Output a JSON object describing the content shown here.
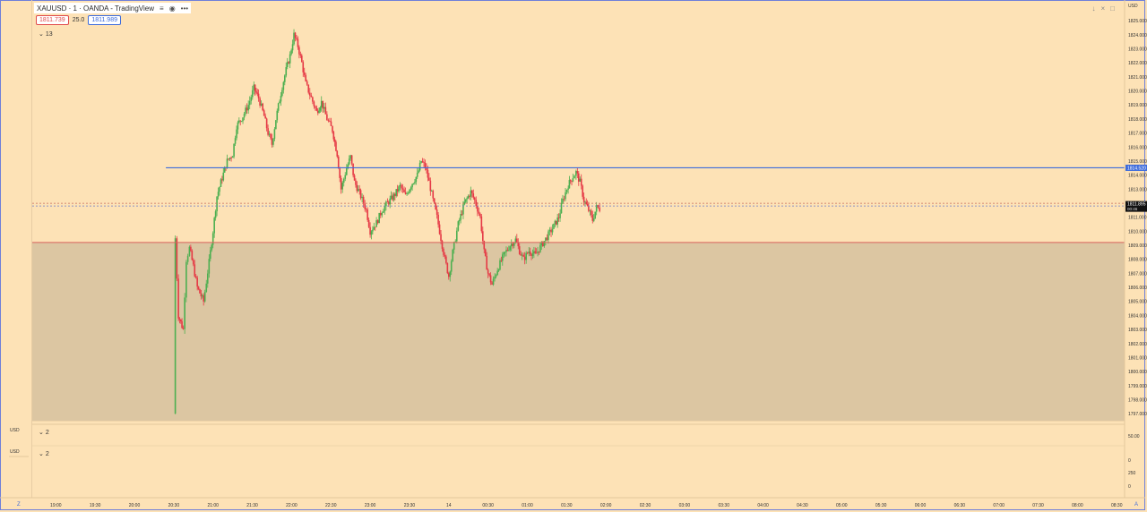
{
  "window": {
    "title": "XAUUSD · 1 · OANDA - TradingView",
    "currency": "USD",
    "corner_left": "Z",
    "corner_right": "A"
  },
  "trade_bar": {
    "sell_price": "1811.739",
    "quantity": "25.0",
    "buy_price": "1811.989"
  },
  "collapse_main": "13",
  "sub_panes": [
    {
      "label": "USD",
      "collapse": "2"
    },
    {
      "label": "USD",
      "collapse": "2"
    }
  ],
  "sub_pane_ticks": [
    "50.00",
    "0",
    "250",
    "0"
  ],
  "markers": {
    "blue_line_label": "1814.520",
    "current_price_label": "1811.895",
    "countdown": "00:46"
  },
  "colors": {
    "background": "#fde2b6",
    "up": "#4caf50",
    "down": "#e53945",
    "zone_fill": "#dcc6a2",
    "blue_line": "#3d6bdb",
    "red_line": "#d9625e"
  },
  "chart_data": {
    "type": "candlestick",
    "symbol": "XAUUSD",
    "interval": "1",
    "ylim": [
      1796.5,
      1825.2
    ],
    "y_ticks": [
      "1825.000",
      "1824.000",
      "1823.000",
      "1822.000",
      "1821.000",
      "1820.000",
      "1819.000",
      "1818.000",
      "1817.000",
      "1816.000",
      "1815.000",
      "1814.000",
      "1813.000",
      "1812.000",
      "1811.000",
      "1810.000",
      "1809.000",
      "1808.000",
      "1807.000",
      "1806.000",
      "1805.000",
      "1804.000",
      "1803.000",
      "1802.000",
      "1801.000",
      "1800.000",
      "1799.000",
      "1798.000",
      "1797.000"
    ],
    "x_ticks": [
      "19:00",
      "19:30",
      "20:00",
      "20:30",
      "21:00",
      "21:30",
      "22:00",
      "22:30",
      "23:00",
      "23:30",
      "14",
      "00:30",
      "01:00",
      "01:30",
      "02:00",
      "02:30",
      "03:00",
      "03:30",
      "04:00",
      "04:30",
      "05:00",
      "05:30",
      "06:00",
      "06:30",
      "07:00",
      "07:30",
      "08:00",
      "08:30"
    ],
    "price_path": [
      [
        20.5,
        1797
      ],
      [
        20.52,
        1809.5
      ],
      [
        20.56,
        1804
      ],
      [
        20.62,
        1803
      ],
      [
        20.66,
        1808
      ],
      [
        20.7,
        1808.8
      ],
      [
        20.75,
        1807.5
      ],
      [
        20.8,
        1806
      ],
      [
        20.88,
        1805
      ],
      [
        20.95,
        1807.8
      ],
      [
        21.0,
        1810
      ],
      [
        21.05,
        1812.5
      ],
      [
        21.1,
        1813.5
      ],
      [
        21.18,
        1815
      ],
      [
        21.25,
        1815.5
      ],
      [
        21.3,
        1817.5
      ],
      [
        21.38,
        1818.2
      ],
      [
        21.45,
        1819
      ],
      [
        21.52,
        1820.2
      ],
      [
        21.58,
        1819.5
      ],
      [
        21.65,
        1818.2
      ],
      [
        21.7,
        1817
      ],
      [
        21.75,
        1816.2
      ],
      [
        21.8,
        1818
      ],
      [
        21.88,
        1820.3
      ],
      [
        21.93,
        1821.5
      ],
      [
        21.98,
        1822.5
      ],
      [
        22.03,
        1824
      ],
      [
        22.08,
        1823.2
      ],
      [
        22.13,
        1822
      ],
      [
        22.18,
        1820.5
      ],
      [
        22.25,
        1819.5
      ],
      [
        22.32,
        1818.5
      ],
      [
        22.38,
        1819.2
      ],
      [
        22.45,
        1818
      ],
      [
        22.52,
        1817.2
      ],
      [
        22.58,
        1815.5
      ],
      [
        22.63,
        1813
      ],
      [
        22.7,
        1814.5
      ],
      [
        22.75,
        1815.3
      ],
      [
        22.8,
        1813.5
      ],
      [
        22.88,
        1812.5
      ],
      [
        22.95,
        1811.5
      ],
      [
        23.0,
        1810
      ],
      [
        23.08,
        1810.6
      ],
      [
        23.15,
        1811.5
      ],
      [
        23.22,
        1812
      ],
      [
        23.3,
        1812.5
      ],
      [
        23.38,
        1813.2
      ],
      [
        23.45,
        1812.5
      ],
      [
        23.52,
        1813.3
      ],
      [
        23.6,
        1814
      ],
      [
        23.65,
        1815
      ],
      [
        23.7,
        1814.6
      ],
      [
        23.75,
        1813.5
      ],
      [
        23.8,
        1812.2
      ],
      [
        23.85,
        1811
      ],
      [
        23.9,
        1809.5
      ],
      [
        23.95,
        1808
      ],
      [
        24.0,
        1806.8
      ],
      [
        24.05,
        1808.5
      ],
      [
        24.12,
        1810.5
      ],
      [
        24.2,
        1812
      ],
      [
        24.28,
        1812.8
      ],
      [
        24.33,
        1812.2
      ],
      [
        24.4,
        1811
      ],
      [
        24.45,
        1808.5
      ],
      [
        24.5,
        1807
      ],
      [
        24.55,
        1806.2
      ],
      [
        24.62,
        1807.3
      ],
      [
        24.7,
        1808.3
      ],
      [
        24.78,
        1809
      ],
      [
        24.85,
        1809.4
      ],
      [
        24.9,
        1808.6
      ],
      [
        24.95,
        1808
      ],
      [
        25.02,
        1808.6
      ],
      [
        25.1,
        1808.3
      ],
      [
        25.18,
        1809
      ],
      [
        25.25,
        1809.6
      ],
      [
        25.32,
        1810.2
      ],
      [
        25.4,
        1811
      ],
      [
        25.45,
        1812.2
      ],
      [
        25.52,
        1813.3
      ],
      [
        25.58,
        1813.9
      ],
      [
        25.62,
        1814.2
      ],
      [
        25.67,
        1813.5
      ],
      [
        25.72,
        1812.2
      ],
      [
        25.78,
        1811.5
      ],
      [
        25.83,
        1810.8
      ],
      [
        25.88,
        1811.7
      ],
      [
        25.92,
        1811.6
      ]
    ],
    "horizontal_lines": [
      {
        "price": 1814.52,
        "color": "blue",
        "from_time": 20.4
      },
      {
        "price": 1809.2,
        "color": "red",
        "from_time": 18.7
      },
      {
        "price": 1811.895,
        "color": "dotted",
        "from_time": 18.7
      }
    ],
    "zone": {
      "price_top": 1809.2,
      "price_bottom": 1796.5
    }
  }
}
